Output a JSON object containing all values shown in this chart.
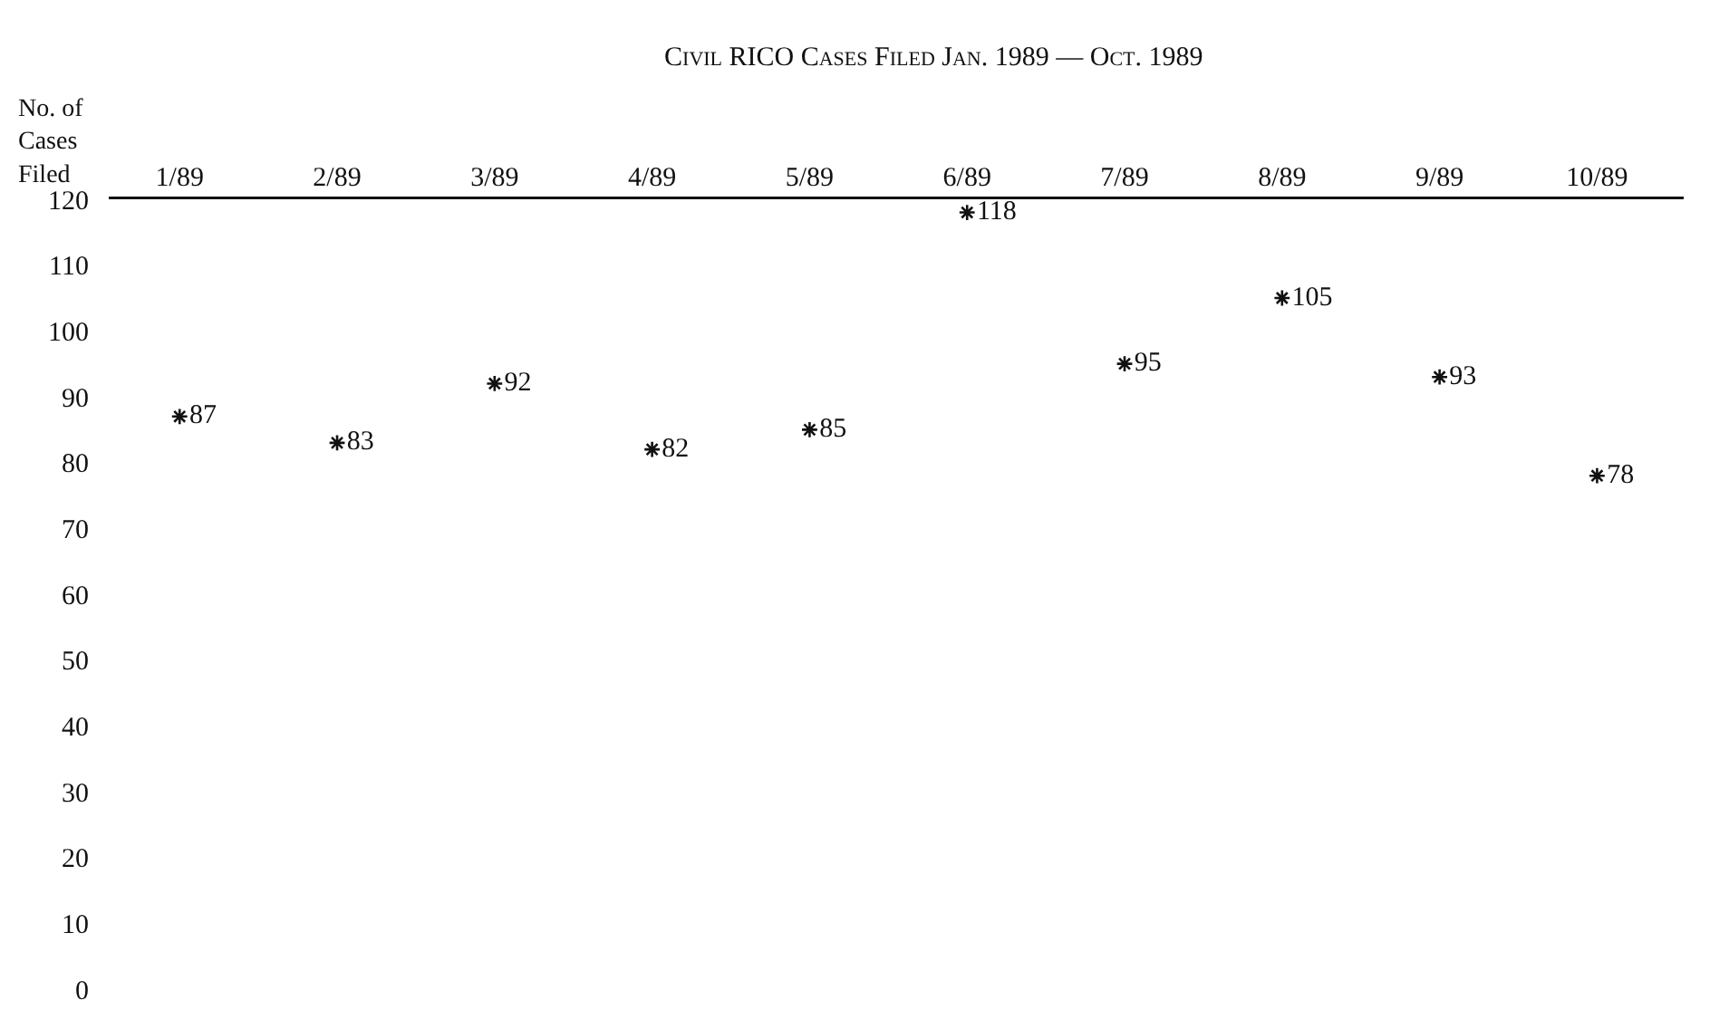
{
  "chart_data": {
    "type": "scatter",
    "title": "Civil RICO Cases Filed Jan. 1989 — Oct. 1989",
    "ylabel": "No. of\nCases\nFiled",
    "categories": [
      "1/89",
      "2/89",
      "3/89",
      "4/89",
      "5/89",
      "6/89",
      "7/89",
      "8/89",
      "9/89",
      "10/89"
    ],
    "values": [
      87,
      83,
      92,
      82,
      85,
      118,
      95,
      105,
      93,
      78
    ],
    "color": "#111111",
    "marker": "cross",
    "data_labels": true,
    "grid": false,
    "legend": false,
    "ylim": [
      0,
      120
    ],
    "yticks": [
      0,
      10,
      20,
      30,
      40,
      50,
      60,
      70,
      80,
      90,
      100,
      110,
      120
    ]
  }
}
